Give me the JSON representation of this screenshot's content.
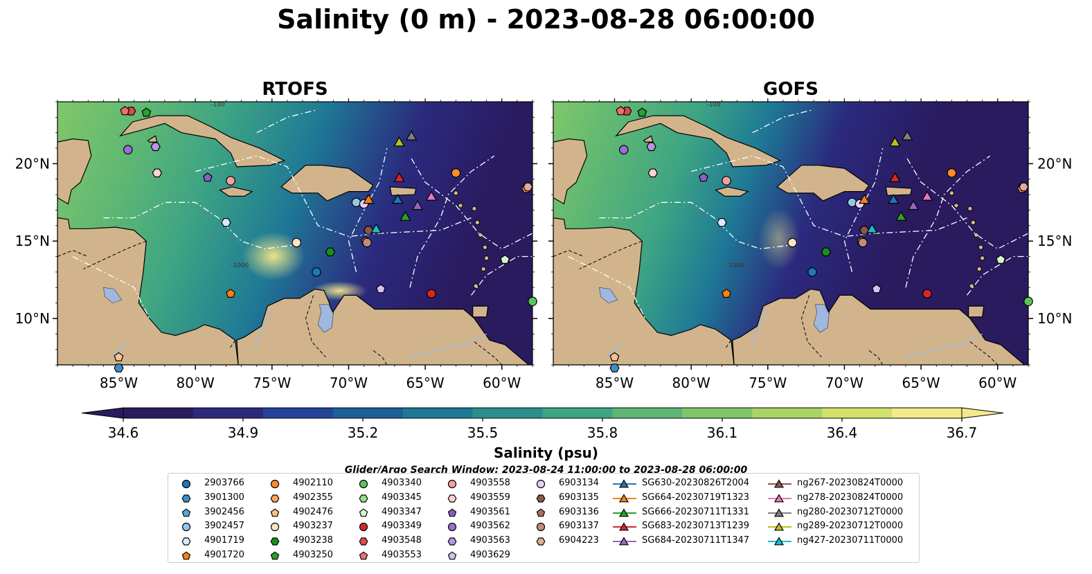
{
  "title": "Salinity (0 m) - 2023-08-28 06:00:00",
  "panels": [
    {
      "title": "RTOFS",
      "salinity_ramp_pct": [
        0.2,
        0.35,
        0.55,
        0.75,
        0.95
      ]
    },
    {
      "title": "GOFS",
      "salinity_ramp_pct": [
        0.15,
        0.3,
        0.45,
        0.6,
        0.8
      ]
    }
  ],
  "map": {
    "lon_range": [
      -89,
      -58
    ],
    "lat_range": [
      7,
      24
    ],
    "lon_ticks": [
      {
        "value": -85,
        "label": "85°W"
      },
      {
        "value": -80,
        "label": "80°W"
      },
      {
        "value": -75,
        "label": "75°W"
      },
      {
        "value": -70,
        "label": "70°W"
      },
      {
        "value": -65,
        "label": "65°W"
      },
      {
        "value": -60,
        "label": "60°W"
      }
    ],
    "lat_ticks": [
      {
        "value": 10,
        "label": "10°N"
      },
      {
        "value": 15,
        "label": "15°N"
      },
      {
        "value": 20,
        "label": "20°N"
      }
    ],
    "contour_label": "-1000",
    "contour_label_top": "-100",
    "land_color": "#d2b48c",
    "lake_color": "#a0b8e0"
  },
  "colorbar": {
    "label": "Salinity (psu)",
    "min": 34.6,
    "max": 36.7,
    "ticks": [
      "34.6",
      "34.9",
      "35.2",
      "35.5",
      "35.8",
      "36.1",
      "36.4",
      "36.7"
    ],
    "colors": [
      "#2a1a5e",
      "#2b2a7e",
      "#24449a",
      "#1d5f99",
      "#1e7896",
      "#2a8f8c",
      "#3ea483",
      "#5cb674",
      "#80c76a",
      "#a9d465",
      "#d3e16b",
      "#f3ea8a"
    ]
  },
  "search_window": "Glider/Argo Search Window: 2023-08-24 11:00:00 to 2023-08-28 06:00:00",
  "legend": {
    "columns": [
      [
        {
          "label": "2903766",
          "marker": "circle",
          "color": "#1f77b4"
        },
        {
          "label": "3901300",
          "marker": "hexagon",
          "color": "#3d8fc9"
        },
        {
          "label": "3902456",
          "marker": "pentagon",
          "color": "#5aa6dc"
        },
        {
          "label": "3902457",
          "marker": "circle",
          "color": "#94c6ec"
        },
        {
          "label": "4901719",
          "marker": "hexagon",
          "color": "#dcebf9"
        },
        {
          "label": "4901720",
          "marker": "pentagon",
          "color": "#ff7f0e"
        }
      ],
      [
        {
          "label": "4902110",
          "marker": "circle",
          "color": "#ff8c2a"
        },
        {
          "label": "4902355",
          "marker": "hexagon",
          "color": "#ffa55c"
        },
        {
          "label": "4902476",
          "marker": "pentagon",
          "color": "#ffbf8a"
        },
        {
          "label": "4903237",
          "marker": "circle",
          "color": "#ffe3c2"
        },
        {
          "label": "4903238",
          "marker": "hexagon",
          "color": "#1e8c1e"
        },
        {
          "label": "4903250",
          "marker": "pentagon",
          "color": "#2ca02c"
        }
      ],
      [
        {
          "label": "4903340",
          "marker": "circle",
          "color": "#5cc45c"
        },
        {
          "label": "4903345",
          "marker": "hexagon",
          "color": "#98df8a"
        },
        {
          "label": "4903347",
          "marker": "pentagon",
          "color": "#d6f5cf"
        },
        {
          "label": "4903349",
          "marker": "circle",
          "color": "#d62728"
        },
        {
          "label": "4903548",
          "marker": "hexagon",
          "color": "#e04a4a"
        },
        {
          "label": "4903553",
          "marker": "pentagon",
          "color": "#f07070"
        }
      ],
      [
        {
          "label": "4903558",
          "marker": "circle",
          "color": "#f5a0a0"
        },
        {
          "label": "4903559",
          "marker": "hexagon",
          "color": "#fcd2d2"
        },
        {
          "label": "4903561",
          "marker": "pentagon",
          "color": "#8a5cc4"
        },
        {
          "label": "4903562",
          "marker": "circle",
          "color": "#9a6fd0"
        },
        {
          "label": "4903563",
          "marker": "hexagon",
          "color": "#b596e0"
        },
        {
          "label": "4903629",
          "marker": "pentagon",
          "color": "#d5bff2"
        }
      ],
      [
        {
          "label": "6903134",
          "marker": "circle",
          "color": "#e6cff5"
        },
        {
          "label": "6903135",
          "marker": "hexagon",
          "color": "#8c564b"
        },
        {
          "label": "6903136",
          "marker": "pentagon",
          "color": "#a8705e"
        },
        {
          "label": "6903137",
          "marker": "circle",
          "color": "#c48b78"
        },
        {
          "label": "6904223",
          "marker": "hexagon",
          "color": "#e0ab98"
        }
      ],
      [
        {
          "label": "SG630-20230826T2004",
          "marker": "triangle",
          "color": "#1f77b4"
        },
        {
          "label": "SG664-20230719T1323",
          "marker": "triangle",
          "color": "#ff7f0e"
        },
        {
          "label": "SG666-20230711T1331",
          "marker": "triangle",
          "color": "#2ca02c"
        },
        {
          "label": "SG683-20230713T1239",
          "marker": "triangle",
          "color": "#d62728"
        },
        {
          "label": "SG684-20230711T1347",
          "marker": "triangle",
          "color": "#9467bd"
        }
      ],
      [
        {
          "label": "ng267-20230824T0000",
          "marker": "triangle",
          "color": "#8c564b"
        },
        {
          "label": "ng278-20230824T0000",
          "marker": "triangle",
          "color": "#e377c2"
        },
        {
          "label": "ng280-20230712T0000",
          "marker": "triangle",
          "color": "#7f7f7f"
        },
        {
          "label": "ng289-20230712T0000",
          "marker": "triangle",
          "color": "#bcbd22"
        },
        {
          "label": "ng427-20230711T0000",
          "marker": "triangle",
          "color": "#17becf"
        }
      ]
    ]
  },
  "floats": [
    {
      "label": "2903766",
      "lon": -72.1,
      "lat": 13.0
    },
    {
      "label": "3901300",
      "lon": -85.0,
      "lat": 6.8
    },
    {
      "label": "3902457",
      "lon": -69.5,
      "lat": 17.5
    },
    {
      "label": "4901719",
      "lon": -78.0,
      "lat": 16.2
    },
    {
      "label": "4901720",
      "lon": -77.7,
      "lat": 11.6
    },
    {
      "label": "4902110",
      "lon": -63.0,
      "lat": 19.4
    },
    {
      "label": "4902355",
      "lon": -58.4,
      "lat": 18.4
    },
    {
      "label": "4902476",
      "lon": -85.0,
      "lat": 7.5
    },
    {
      "label": "4903237",
      "lon": -73.4,
      "lat": 14.9
    },
    {
      "label": "4903238",
      "lon": -71.2,
      "lat": 14.3
    },
    {
      "label": "4903250",
      "lon": -83.2,
      "lat": 23.3
    },
    {
      "label": "4903340",
      "lon": -58.0,
      "lat": 11.1
    },
    {
      "label": "4903347",
      "lon": -59.8,
      "lat": 13.8
    },
    {
      "label": "4903349",
      "lon": -64.6,
      "lat": 11.6
    },
    {
      "label": "4903548",
      "lon": -84.2,
      "lat": 23.4
    },
    {
      "label": "4903553",
      "lon": -84.6,
      "lat": 23.4
    },
    {
      "label": "4903558",
      "lon": -77.7,
      "lat": 18.9
    },
    {
      "label": "4903559",
      "lon": -82.5,
      "lat": 19.4
    },
    {
      "label": "4903561",
      "lon": -79.2,
      "lat": 19.1
    },
    {
      "label": "4903562",
      "lon": -84.4,
      "lat": 20.9
    },
    {
      "label": "4903563",
      "lon": -82.6,
      "lat": 21.1
    },
    {
      "label": "4903629",
      "lon": -67.9,
      "lat": 11.9
    },
    {
      "label": "6903134",
      "lon": -69.0,
      "lat": 17.4
    },
    {
      "label": "6903135",
      "lon": -68.7,
      "lat": 15.7
    },
    {
      "label": "6903136",
      "lon": -68.9,
      "lat": 15.0
    },
    {
      "label": "6903137",
      "lon": -68.8,
      "lat": 14.9
    },
    {
      "label": "6904223",
      "lon": -58.3,
      "lat": 18.5
    }
  ],
  "gliders": [
    {
      "label": "SG630-20230826T2004",
      "lon": -66.8,
      "lat": 17.7
    },
    {
      "label": "SG664-20230719T1323",
      "lon": -68.7,
      "lat": 17.7
    },
    {
      "label": "SG666-20230711T1331",
      "lon": -66.3,
      "lat": 16.6
    },
    {
      "label": "SG683-20230713T1239",
      "lon": -66.7,
      "lat": 19.1
    },
    {
      "label": "SG684-20230711T1347",
      "lon": -65.5,
      "lat": 17.3
    },
    {
      "label": "ng278-20230824T0000",
      "lon": -64.6,
      "lat": 17.9
    },
    {
      "label": "ng280-20230712T0000",
      "lon": -65.9,
      "lat": 21.8
    },
    {
      "label": "ng289-20230712T0000",
      "lon": -66.7,
      "lat": 21.4
    },
    {
      "label": "ng427-20230711T0000",
      "lon": -68.2,
      "lat": 15.8
    }
  ]
}
